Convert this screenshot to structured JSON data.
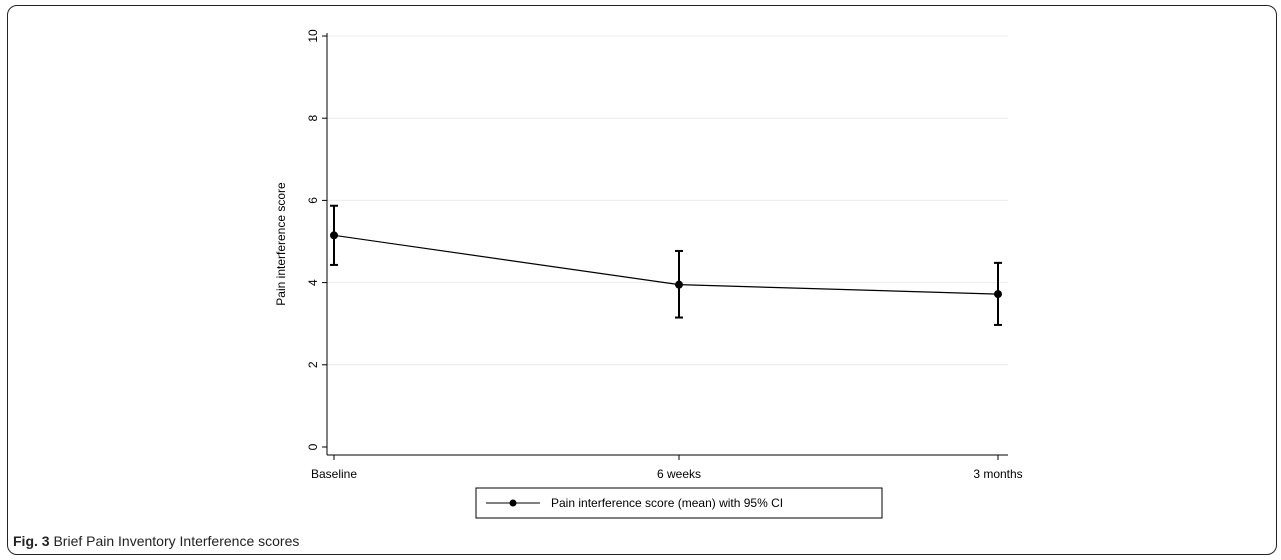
{
  "figure": {
    "label": "Fig. 3",
    "caption": "Brief Pain Inventory Interference scores"
  },
  "chart_data": {
    "type": "line",
    "categories": [
      "Baseline",
      "6 weeks",
      "3 months"
    ],
    "series": [
      {
        "name": "Pain interference score (mean) with 95% CI",
        "values": [
          5.15,
          3.95,
          3.72
        ],
        "ci_lower": [
          4.43,
          3.15,
          2.97
        ],
        "ci_upper": [
          5.87,
          4.77,
          4.48
        ]
      }
    ],
    "title": "",
    "xlabel": "",
    "ylabel": "Pain interference score",
    "ylim": [
      0,
      10
    ],
    "yticks": [
      "0",
      "2",
      "4",
      "6",
      "8",
      "10"
    ],
    "grid": true,
    "legend_position": "bottom"
  }
}
